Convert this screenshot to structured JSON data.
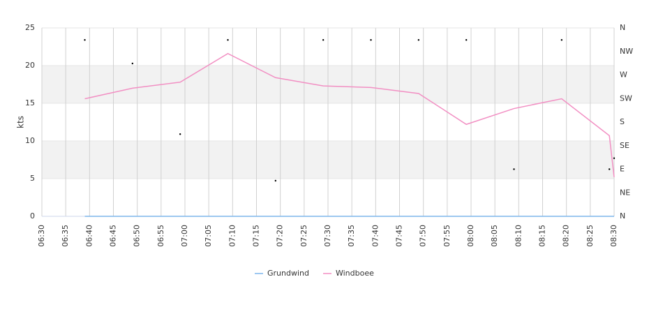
{
  "chart_data": {
    "type": "line",
    "y_label": "kts",
    "x": [
      "06:39",
      "06:49",
      "06:59",
      "07:09",
      "07:19",
      "07:29",
      "07:39",
      "07:49",
      "07:59",
      "08:09",
      "08:19",
      "08:29",
      "08:30"
    ],
    "xlim": [
      "06:30",
      "08:30"
    ],
    "xticks": [
      "06:30",
      "06:35",
      "06:40",
      "06:45",
      "06:50",
      "06:55",
      "07:00",
      "07:05",
      "07:10",
      "07:15",
      "07:20",
      "07:25",
      "07:30",
      "07:35",
      "07:40",
      "07:45",
      "07:50",
      "07:55",
      "08:00",
      "08:05",
      "08:10",
      "08:15",
      "08:20",
      "08:25",
      "08:30"
    ],
    "ylim": [
      0,
      25
    ],
    "yticks": [
      0,
      5,
      10,
      15,
      20,
      25
    ],
    "y2lim": [
      0,
      360
    ],
    "y2ticks": [
      {
        "value": 0,
        "label": "N"
      },
      {
        "value": 45,
        "label": "NE"
      },
      {
        "value": 90,
        "label": "E"
      },
      {
        "value": 135,
        "label": "SE"
      },
      {
        "value": 180,
        "label": "S"
      },
      {
        "value": 225,
        "label": "SW"
      },
      {
        "value": 270,
        "label": "W"
      },
      {
        "value": 315,
        "label": "NW"
      },
      {
        "value": 360,
        "label": "N"
      }
    ],
    "grid": true,
    "alternate_bands": true,
    "legend": "bottom",
    "series": [
      {
        "name": "Grundwind",
        "color": "#7cb5ec",
        "values": [
          0,
          0,
          0,
          0,
          0,
          0,
          0,
          0,
          0,
          0,
          0,
          0,
          0
        ]
      },
      {
        "name": "Windboee",
        "color": "#f28fc3",
        "values": [
          15.6,
          17.0,
          17.8,
          21.6,
          18.4,
          17.3,
          17.1,
          16.3,
          12.2,
          14.3,
          15.6,
          10.7,
          5.2
        ]
      },
      {
        "color": "#000000",
        "axis": "y2",
        "marker": "dot",
        "values": [
          337,
          292,
          157,
          337,
          68,
          337,
          337,
          337,
          337,
          90,
          337,
          90,
          111
        ]
      }
    ]
  }
}
